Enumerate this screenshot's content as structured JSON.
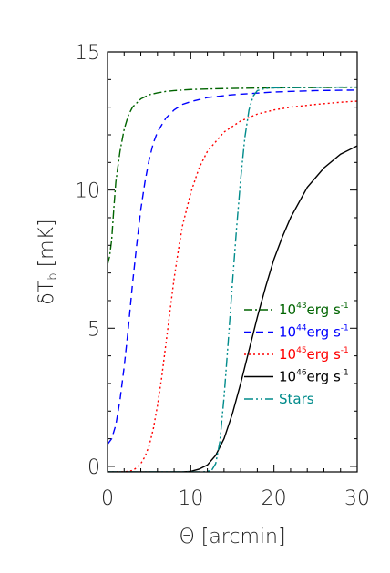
{
  "chart_data": {
    "type": "line",
    "xlabel": "Θ [arcmin]",
    "ylabel": "δT_b [mK]",
    "ylabel_main": "δT",
    "ylabel_sub": "b",
    "ylabel_unit": "[mK]",
    "xlim": [
      0,
      30
    ],
    "ylim": [
      -0.2,
      15
    ],
    "xticks": [
      0,
      10,
      20,
      30
    ],
    "yticks": [
      0,
      5,
      10,
      15
    ],
    "grid": false,
    "legend_position": "bottom-right",
    "series": [
      {
        "name": "10^43 erg s^-1",
        "label_base": "10",
        "label_exp": "43",
        "label_unit": "erg s",
        "label_unit_exp": "-1",
        "color": "#006400",
        "dash": "9,3,2,3",
        "x": [
          0,
          0.25,
          0.5,
          0.75,
          1,
          1.5,
          2,
          2.5,
          3,
          3.5,
          4,
          5,
          6,
          7,
          8,
          10,
          12,
          15,
          20,
          25,
          30
        ],
        "y": [
          7.3,
          7.6,
          8.2,
          9.3,
          10.3,
          11.4,
          12.2,
          12.7,
          13.0,
          13.15,
          13.3,
          13.45,
          13.52,
          13.57,
          13.6,
          13.64,
          13.66,
          13.68,
          13.7,
          13.71,
          13.72
        ]
      },
      {
        "name": "10^44 erg s^-1",
        "label_base": "10",
        "label_exp": "44",
        "label_unit": "erg s",
        "label_unit_exp": "-1",
        "color": "#0000ff",
        "dash": "8,5",
        "x": [
          0,
          0.5,
          1,
          1.5,
          2,
          2.5,
          3,
          3.5,
          4,
          4.5,
          5,
          5.5,
          6,
          7,
          8,
          9,
          10,
          12,
          15,
          20,
          25,
          30
        ],
        "y": [
          0.8,
          1.0,
          1.5,
          2.4,
          3.6,
          5.0,
          6.6,
          8.0,
          9.3,
          10.3,
          11.1,
          11.7,
          12.1,
          12.6,
          12.9,
          13.1,
          13.2,
          13.35,
          13.45,
          13.55,
          13.6,
          13.62
        ]
      },
      {
        "name": "10^45 erg s^-1",
        "label_base": "10",
        "label_exp": "45",
        "label_unit": "erg s",
        "label_unit_exp": "-1",
        "color": "#ff0000",
        "dash": "2,3",
        "x": [
          0,
          2,
          3,
          3.5,
          4,
          4.5,
          5,
          5.5,
          6,
          6.5,
          7,
          7.5,
          8,
          8.5,
          9,
          10,
          11,
          12,
          14,
          16,
          18,
          20,
          22,
          25,
          28,
          30
        ],
        "y": [
          -0.2,
          -0.2,
          -0.15,
          -0.05,
          0.1,
          0.35,
          0.75,
          1.35,
          2.2,
          3.2,
          4.4,
          5.6,
          6.8,
          7.8,
          8.7,
          9.9,
          10.8,
          11.4,
          12.1,
          12.5,
          12.75,
          12.9,
          13.0,
          13.1,
          13.18,
          13.22
        ]
      },
      {
        "name": "10^46 erg s^-1",
        "label_base": "10",
        "label_exp": "46",
        "label_unit": "erg s",
        "label_unit_exp": "-1",
        "color": "#000000",
        "dash": "",
        "x": [
          0,
          9,
          10,
          11,
          12,
          13,
          14,
          15,
          16,
          17,
          18,
          19,
          20,
          21,
          22,
          24,
          26,
          28,
          30
        ],
        "y": [
          -0.2,
          -0.2,
          -0.18,
          -0.1,
          0.05,
          0.4,
          1.0,
          1.9,
          3.0,
          4.2,
          5.4,
          6.5,
          7.5,
          8.3,
          9.0,
          10.1,
          10.8,
          11.3,
          11.6
        ]
      },
      {
        "name": "Stars",
        "label_base": "Stars",
        "label_exp": "",
        "label_unit": "",
        "label_unit_exp": "",
        "color": "#008b8b",
        "dash": "10,3,2,3,2,3",
        "x": [
          0,
          11.5,
          12.5,
          13,
          13.5,
          14,
          14.5,
          15,
          15.5,
          16,
          16.5,
          17,
          17.5,
          18,
          19,
          20,
          22,
          25,
          30
        ],
        "y": [
          -0.2,
          -0.2,
          -0.15,
          0.1,
          0.9,
          2.5,
          4.5,
          6.6,
          8.6,
          10.4,
          11.9,
          12.9,
          13.4,
          13.6,
          13.68,
          13.7,
          13.71,
          13.72,
          13.73
        ]
      }
    ]
  }
}
